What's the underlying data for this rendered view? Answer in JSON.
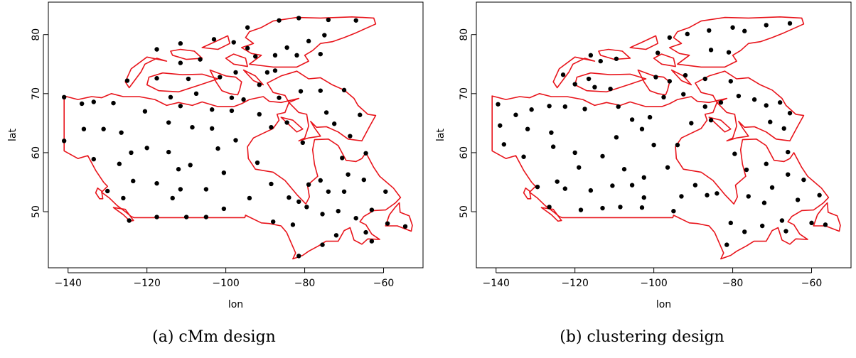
{
  "chart_data": [
    {
      "type": "scatter",
      "caption": "(a) cMm design",
      "xlabel": "lon",
      "ylabel": "lat",
      "xlim": [
        -145,
        -50
      ],
      "ylim": [
        40.5,
        85.5
      ],
      "x_ticks": [
        -140,
        -120,
        -100,
        -80,
        -60
      ],
      "y_ticks": [
        50,
        60,
        70,
        80
      ],
      "grid": false,
      "series": [
        {
          "marker_color": "#000000",
          "points": [
            [
              -141,
              69.4
            ],
            [
              -141,
              62.0
            ],
            [
              -136.5,
              68.3
            ],
            [
              -133.5,
              68.6
            ],
            [
              -136,
              64.0
            ],
            [
              -131,
              64.0
            ],
            [
              -126.5,
              63.4
            ],
            [
              -128.5,
              68.4
            ],
            [
              -125,
              72.2
            ],
            [
              -117.5,
              77.5
            ],
            [
              -111.5,
              78.5
            ],
            [
              -103,
              79.2
            ],
            [
              -98,
              78.7
            ],
            [
              -94.5,
              81.2
            ],
            [
              -86.5,
              82.4
            ],
            [
              -81.5,
              82.8
            ],
            [
              -74,
              82.5
            ],
            [
              -67,
              82.4
            ],
            [
              -75,
              79.9
            ],
            [
              -79,
              78.9
            ],
            [
              -84.5,
              77.8
            ],
            [
              -94.5,
              77.7
            ],
            [
              -82,
              76.5
            ],
            [
              -76,
              76.7
            ],
            [
              -87.5,
              76.5
            ],
            [
              -92.5,
              76.3
            ],
            [
              -87.5,
              73.9
            ],
            [
              -106.5,
              75.8
            ],
            [
              -111.5,
              75.2
            ],
            [
              -117.5,
              72.6
            ],
            [
              -109.5,
              72.5
            ],
            [
              -101.5,
              72.8
            ],
            [
              -97.5,
              73.6
            ],
            [
              -89.5,
              73.6
            ],
            [
              -91.5,
              71.5
            ],
            [
              -81,
              70.4
            ],
            [
              -76,
              70.5
            ],
            [
              -70,
              70.6
            ],
            [
              -86.5,
              69.3
            ],
            [
              -98.5,
              69.3
            ],
            [
              -95.5,
              69.0
            ],
            [
              -107.5,
              70.0
            ],
            [
              -114,
              69.4
            ],
            [
              -111.5,
              67.9
            ],
            [
              -103.5,
              67.3
            ],
            [
              -98.5,
              67.1
            ],
            [
              -120.5,
              67.0
            ],
            [
              -114.5,
              65.1
            ],
            [
              -108.5,
              64.3
            ],
            [
              -103.5,
              64.1
            ],
            [
              -91.5,
              66.5
            ],
            [
              -84.5,
              65.1
            ],
            [
              -88.5,
              64.3
            ],
            [
              -66,
              66.4
            ],
            [
              -68.5,
              62.8
            ],
            [
              -72.5,
              64.9
            ],
            [
              -74.5,
              66.8
            ],
            [
              -127,
              58.1
            ],
            [
              -124,
              60.0
            ],
            [
              -120,
              60.8
            ],
            [
              -114.5,
              60.1
            ],
            [
              -109,
              57.9
            ],
            [
              -112,
              57.2
            ],
            [
              -97.5,
              62.1
            ],
            [
              -102,
              60.7
            ],
            [
              -92,
              58.3
            ],
            [
              -100.5,
              56.6
            ],
            [
              -88.5,
              54.7
            ],
            [
              -133.5,
              58.9
            ],
            [
              -130,
              53.5
            ],
            [
              -126,
              52.3
            ],
            [
              -123.5,
              55.2
            ],
            [
              -117.5,
              54.8
            ],
            [
              -111.5,
              53.8
            ],
            [
              -105,
              53.8
            ],
            [
              -113.5,
              52.3
            ],
            [
              -105,
              49.1
            ],
            [
              -110,
              49.1
            ],
            [
              -117.5,
              49.1
            ],
            [
              -100.5,
              50.5
            ],
            [
              -94,
              52.3
            ],
            [
              -88,
              48.3
            ],
            [
              -84,
              52.4
            ],
            [
              -81.5,
              51.7
            ],
            [
              -79,
              54.6
            ],
            [
              -76,
              55.3
            ],
            [
              -80.5,
              61.7
            ],
            [
              -70.5,
              59.1
            ],
            [
              -69,
              56.3
            ],
            [
              -74,
              53.4
            ],
            [
              -70,
              53.4
            ],
            [
              -65,
              55.4
            ],
            [
              -64.5,
              59.9
            ],
            [
              -59.5,
              53.4
            ],
            [
              -63,
              50.3
            ],
            [
              -75.5,
              49.6
            ],
            [
              -79.5,
              50.8
            ],
            [
              -71.5,
              50.1
            ],
            [
              -67,
              48.9
            ],
            [
              -83,
              47.8
            ],
            [
              -75.5,
              44.4
            ],
            [
              -72,
              46.0
            ],
            [
              -63,
              45.0
            ],
            [
              -59,
              48.0
            ],
            [
              -54.5,
              47.5
            ],
            [
              -81.5,
              42.5
            ],
            [
              -124.5,
              48.5
            ],
            [
              -64.5,
              46.5
            ]
          ]
        }
      ]
    },
    {
      "type": "scatter",
      "caption": "(b) clustering design",
      "xlabel": "lon",
      "ylabel": "lat",
      "xlim": [
        -145,
        -50
      ],
      "ylim": [
        40.5,
        85.5
      ],
      "x_ticks": [
        -140,
        -120,
        -100,
        -80,
        -60
      ],
      "y_ticks": [
        50,
        60,
        70,
        80
      ],
      "grid": false,
      "series": [
        {
          "marker_color": "#000000",
          "points": [
            [
              -139.5,
              68.2
            ],
            [
              -139,
              64.6
            ],
            [
              -138,
              61.4
            ],
            [
              -135,
              66.4
            ],
            [
              -132,
              64.0
            ],
            [
              -131,
              67.3
            ],
            [
              -133,
              59.3
            ],
            [
              -129.5,
              54.2
            ],
            [
              -126.5,
              67.9
            ],
            [
              -126,
              63.4
            ],
            [
              -125.5,
              61.0
            ],
            [
              -123,
              73.2
            ],
            [
              -122.5,
              67.8
            ],
            [
              -120,
              71.6
            ],
            [
              -120,
              60.0
            ],
            [
              -119,
              57.5
            ],
            [
              -117.5,
              67.4
            ],
            [
              -116.5,
              72.5
            ],
            [
              -113.5,
              75.5
            ],
            [
              -109.5,
              75.9
            ],
            [
              -116,
              76.5
            ],
            [
              -111,
              70.8
            ],
            [
              -115,
              71.1
            ],
            [
              -109,
              67.8
            ],
            [
              -109.5,
              62.6
            ],
            [
              -113,
              59.4
            ],
            [
              -107.5,
              57.2
            ],
            [
              -105.5,
              54.5
            ],
            [
              -102.5,
              52.4
            ],
            [
              -100,
              61.3
            ],
            [
              -103,
              64.0
            ],
            [
              -105.5,
              65.6
            ],
            [
              -101,
              66.0
            ],
            [
              -97.5,
              69.4
            ],
            [
              -99.5,
              72.8
            ],
            [
              -96,
              72.1
            ],
            [
              -99,
              76.9
            ],
            [
              -96,
              79.5
            ],
            [
              -91.5,
              80.1
            ],
            [
              -86,
              80.7
            ],
            [
              -80,
              81.2
            ],
            [
              -71.5,
              81.6
            ],
            [
              -65.5,
              81.9
            ],
            [
              -77,
              80.6
            ],
            [
              -85.5,
              77.4
            ],
            [
              -81,
              77.0
            ],
            [
              -87,
              72.5
            ],
            [
              -92,
              73.1
            ],
            [
              -92.5,
              69.9
            ],
            [
              -87,
              67.8
            ],
            [
              -83,
              68.5
            ],
            [
              -80.5,
              72.1
            ],
            [
              -78.5,
              69.6
            ],
            [
              -74.5,
              69.0
            ],
            [
              -71.5,
              68.0
            ],
            [
              -68,
              68.5
            ],
            [
              -70.5,
              65.2
            ],
            [
              -67,
              64.1
            ],
            [
              -65.5,
              66.7
            ],
            [
              -85.5,
              65.5
            ],
            [
              -90.5,
              65.0
            ],
            [
              -94,
              61.3
            ],
            [
              -96.5,
              57.5
            ],
            [
              -89.5,
              54.5
            ],
            [
              -93,
              52.6
            ],
            [
              -86.5,
              52.8
            ],
            [
              -84,
              53.1
            ],
            [
              -79.5,
              59.8
            ],
            [
              -76.5,
              57.1
            ],
            [
              -76,
              52.6
            ],
            [
              -72,
              51.5
            ],
            [
              -70,
              54.1
            ],
            [
              -71.5,
              58.1
            ],
            [
              -66,
              60.1
            ],
            [
              -66,
              56.3
            ],
            [
              -62,
              55.4
            ],
            [
              -63.5,
              52.0
            ],
            [
              -58,
              52.8
            ],
            [
              -56.5,
              47.8
            ],
            [
              -60,
              48.1
            ],
            [
              -67.5,
              48.5
            ],
            [
              -72.5,
              47.6
            ],
            [
              -77,
              46.6
            ],
            [
              -80.5,
              48.1
            ],
            [
              -81.5,
              44.4
            ],
            [
              -66.5,
              46.7
            ],
            [
              -95,
              50.1
            ],
            [
              -103,
              50.7
            ],
            [
              -108.5,
              50.8
            ],
            [
              -113,
              50.6
            ],
            [
              -118.5,
              50.3
            ],
            [
              -122.5,
              53.9
            ],
            [
              -126.5,
              50.8
            ],
            [
              -124.5,
              55.1
            ],
            [
              -116,
              53.6
            ],
            [
              -110.5,
              54.4
            ],
            [
              -102.5,
              55.8
            ]
          ]
        }
      ]
    }
  ]
}
